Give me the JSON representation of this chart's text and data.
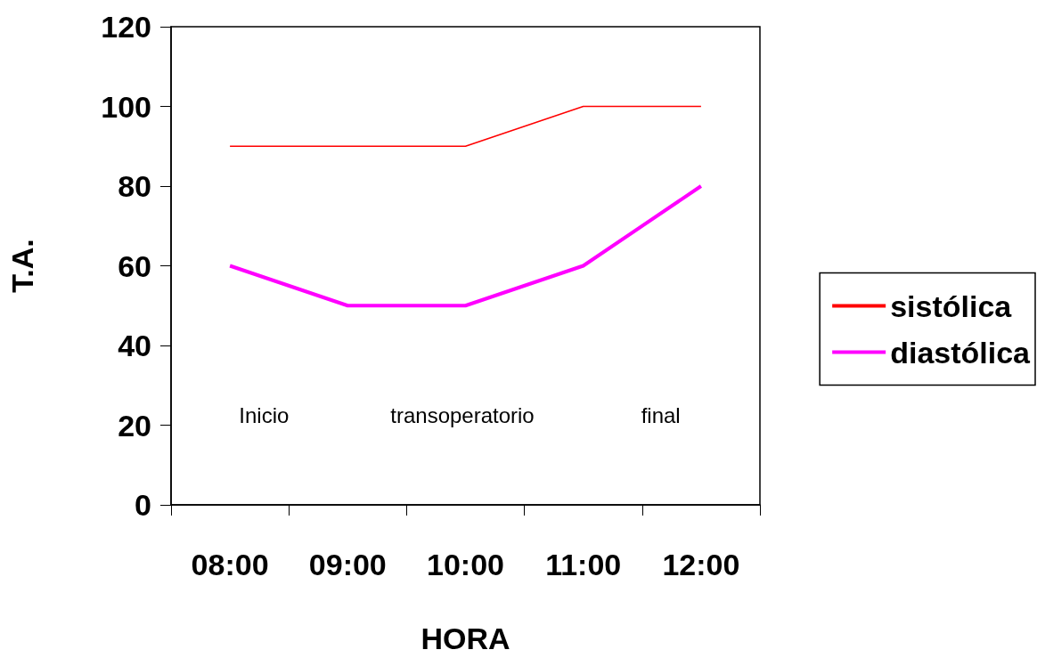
{
  "chart_data": {
    "type": "line",
    "xlabel": "HORA",
    "ylabel": "T.A.",
    "categories": [
      "08:00",
      "09:00",
      "10:00",
      "11:00",
      "12:00"
    ],
    "series": [
      {
        "name": "sistólica",
        "color": "#ff0000",
        "values": [
          90,
          90,
          90,
          100,
          100
        ]
      },
      {
        "name": "diastólica",
        "color": "#ff00ff",
        "values": [
          60,
          50,
          50,
          60,
          80
        ]
      }
    ],
    "ylim": [
      0,
      120
    ],
    "yticks": [
      0,
      20,
      40,
      60,
      80,
      100,
      120
    ],
    "annotations": [
      "Inicio",
      "transoperatorio",
      "final"
    ],
    "legend": "right",
    "grid": false,
    "marker": "none",
    "line_style": "solid"
  }
}
